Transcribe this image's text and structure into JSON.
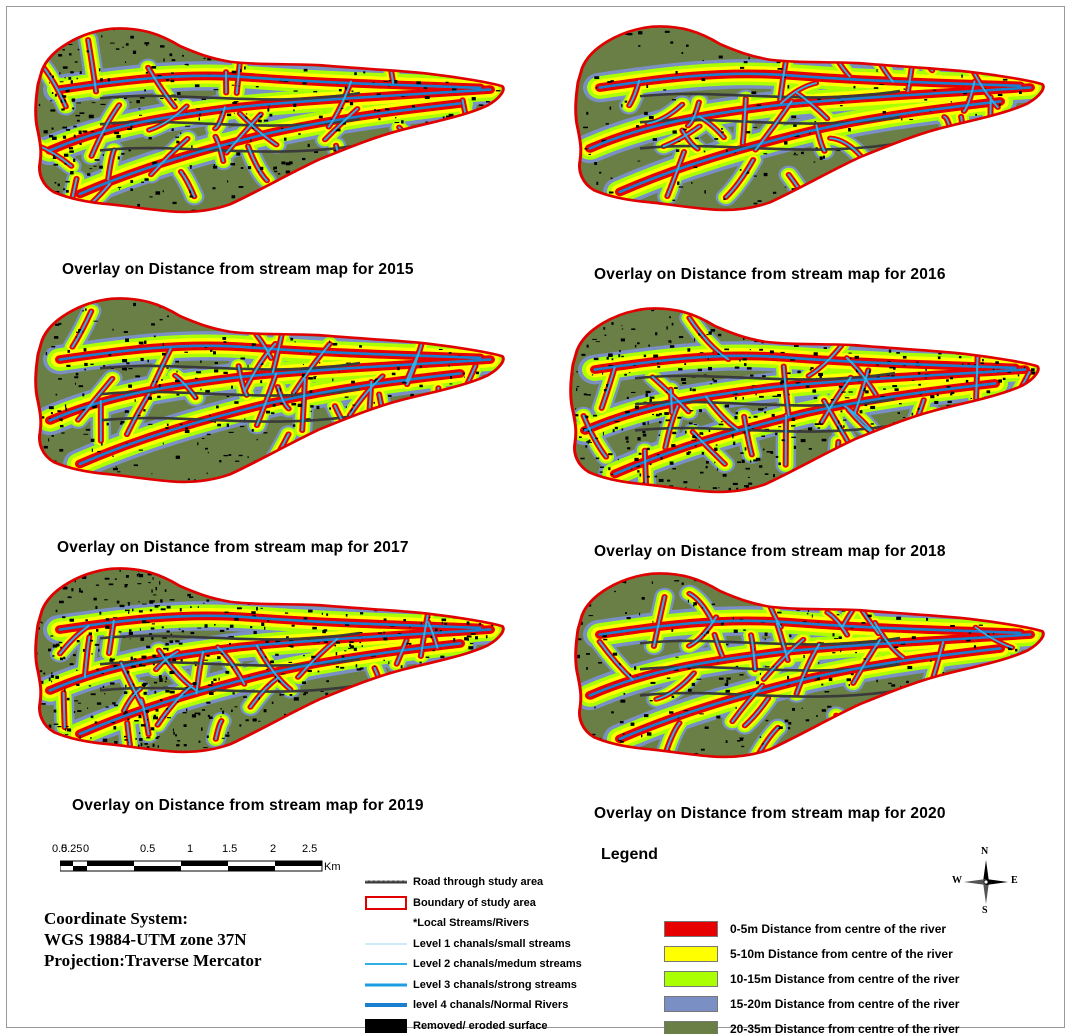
{
  "panels": [
    {
      "caption": "Overlay on Distance from stream map for 2015",
      "density": 0.55
    },
    {
      "caption": "Overlay on Distance from stream map for 2016",
      "density": 0.25
    },
    {
      "caption": "Overlay on Distance from stream map for 2017",
      "density": 0.45
    },
    {
      "caption": "Overlay on Distance from stream map for 2018",
      "density": 0.8
    },
    {
      "caption": "Overlay on Distance from stream map for 2019",
      "density": 0.85
    },
    {
      "caption": "Overlay on Distance from stream map for 2020",
      "density": 0.35
    }
  ],
  "scalebar": {
    "ticks": [
      "0.5",
      "0.25",
      "0",
      "0.5",
      "1",
      "1.5",
      "2",
      "2.5"
    ],
    "unit": "Km"
  },
  "coordinate_system": {
    "line1": "Coordinate System:",
    "line2": "WGS 19884-UTM zone 37N",
    "line3": "Projection:Traverse Mercator"
  },
  "legend": {
    "title": "Legend",
    "line_items": [
      {
        "label": "Road through study area",
        "kind": "road",
        "color": "#3a3a3a"
      },
      {
        "label": "Boundary of study area",
        "kind": "box",
        "color": "#e00000"
      },
      {
        "label": "*Local Streams/Rivers",
        "kind": "none",
        "color": ""
      },
      {
        "label": "Level 1 chanals/small streams",
        "kind": "line",
        "color": "#9ad8f0",
        "width": 1
      },
      {
        "label": "Level 2 chanals/medum streams",
        "kind": "line",
        "color": "#2fb0e8",
        "width": 2
      },
      {
        "label": "Level 3 chanals/strong streams",
        "kind": "line",
        "color": "#1e9ee0",
        "width": 3
      },
      {
        "label": "level 4 chanals/Normal Rivers",
        "kind": "line",
        "color": "#1b7fd0",
        "width": 4
      },
      {
        "label": "Removed/ eroded surface",
        "kind": "fill",
        "color": "#000000"
      }
    ],
    "distance_classes": [
      {
        "label": "0-5m Distance from centre of the river",
        "color": "#e60000"
      },
      {
        "label": "5-10m Distance from centre of the river",
        "color": "#ffff00"
      },
      {
        "label": "10-15m Distance from centre of the river",
        "color": "#aaff00"
      },
      {
        "label": "15-20m Distance from centre of the river",
        "color": "#7a8fc4"
      },
      {
        "label": "20-35m Distance from centre of the river",
        "color": "#6a7f45"
      }
    ]
  },
  "north_arrow": {
    "n": "N",
    "s": "S",
    "e": "E",
    "w": "W"
  }
}
